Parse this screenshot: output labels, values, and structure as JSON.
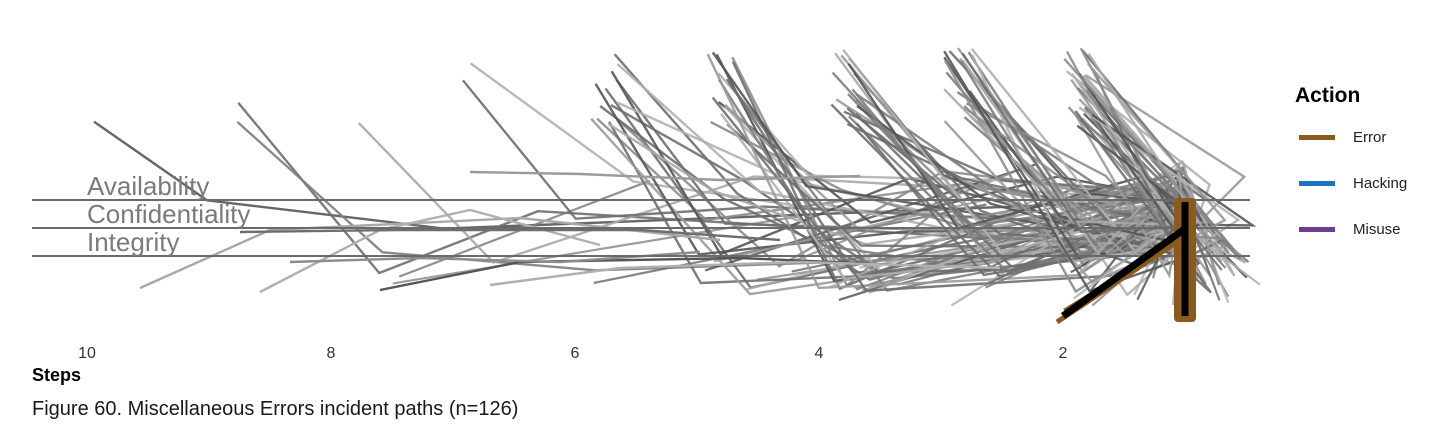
{
  "caption": "Figure 60. Miscellaneous Errors incident paths (n=126)",
  "chart_data": {
    "type": "line",
    "title": "",
    "xlabel": "Steps",
    "ylabel": "",
    "xlim": [
      10.5,
      0
    ],
    "x_ticks": [
      10,
      8,
      6,
      4,
      2
    ],
    "attribute_levels": [
      "Availability",
      "Confidentiality",
      "Integrity"
    ],
    "legend": {
      "title": "Action",
      "placement": "right",
      "entries": [
        {
          "name": "Error",
          "color": "#8a5a1e"
        },
        {
          "name": "Hacking",
          "color": "#1b75bc"
        },
        {
          "name": "Misuse",
          "color": "#6a3d8f"
        }
      ]
    },
    "series_summary": {
      "path_count": 126,
      "color_paths": "#808080",
      "color_highlight": "#000000"
    }
  }
}
